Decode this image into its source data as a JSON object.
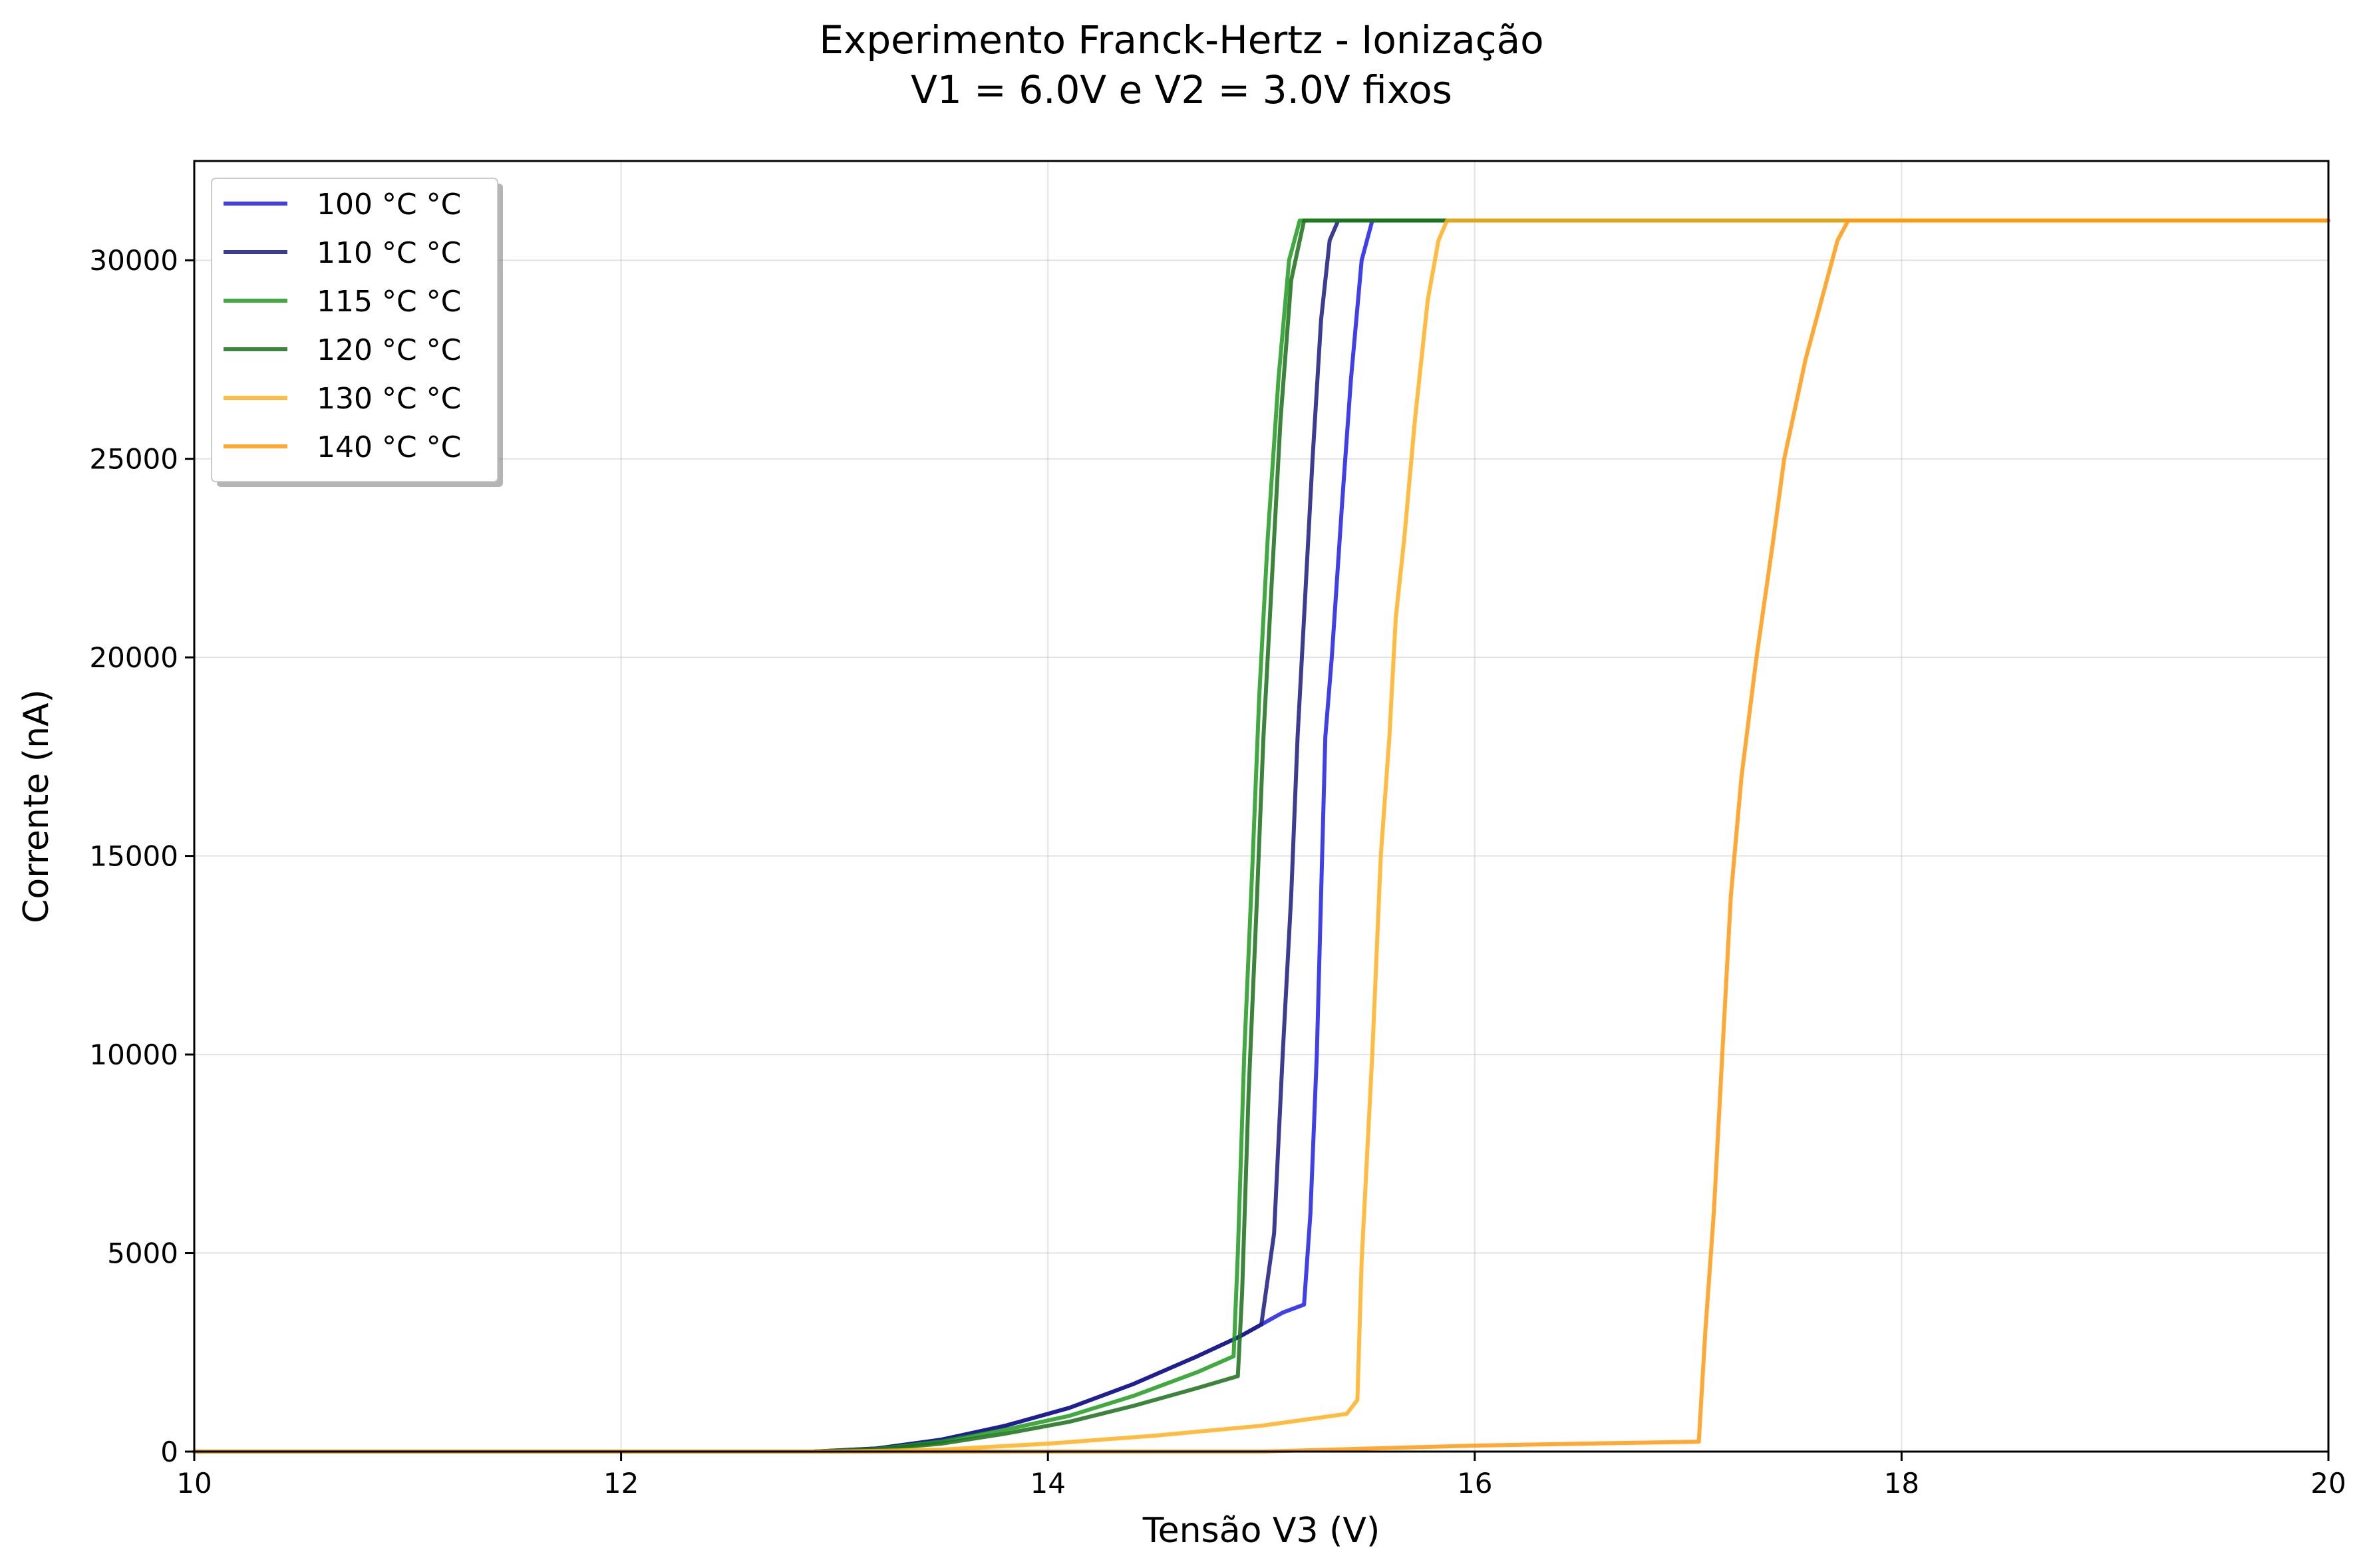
{
  "chart_data": {
    "type": "line",
    "title": "Experimento Franck-Hertz - Ionização",
    "subtitle": "V1 = 6.0V e V2 = 3.0V fixos",
    "xlabel": "Tensão V3 (V)",
    "ylabel": "Corrente (nA)",
    "xlim": [
      10,
      20
    ],
    "ylim": [
      0,
      32500
    ],
    "xticks": [
      10,
      12,
      14,
      16,
      18,
      20
    ],
    "yticks": [
      0,
      5000,
      10000,
      15000,
      20000,
      25000,
      30000
    ],
    "grid": true,
    "legend_position": "top-left",
    "series": [
      {
        "name": "100 °C °C",
        "color": "#1f1fe8",
        "points": [
          [
            10,
            0
          ],
          [
            12.9,
            0
          ],
          [
            13.2,
            80
          ],
          [
            13.5,
            300
          ],
          [
            13.8,
            650
          ],
          [
            14.1,
            1100
          ],
          [
            14.4,
            1700
          ],
          [
            14.7,
            2400
          ],
          [
            14.9,
            2900
          ],
          [
            15.1,
            3500
          ],
          [
            15.2,
            3700
          ],
          [
            15.23,
            6000
          ],
          [
            15.26,
            10000
          ],
          [
            15.28,
            14000
          ],
          [
            15.3,
            18000
          ],
          [
            15.33,
            20000
          ],
          [
            15.38,
            24000
          ],
          [
            15.42,
            27000
          ],
          [
            15.47,
            30000
          ],
          [
            15.52,
            31000
          ],
          [
            20,
            31000
          ]
        ]
      },
      {
        "name": "110 °C °C",
        "color": "#1a1a80",
        "points": [
          [
            10,
            0
          ],
          [
            12.9,
            0
          ],
          [
            13.2,
            80
          ],
          [
            13.5,
            300
          ],
          [
            13.8,
            650
          ],
          [
            14.1,
            1100
          ],
          [
            14.4,
            1700
          ],
          [
            14.7,
            2400
          ],
          [
            14.9,
            2900
          ],
          [
            15.0,
            3200
          ],
          [
            15.06,
            5500
          ],
          [
            15.1,
            10000
          ],
          [
            15.14,
            14000
          ],
          [
            15.17,
            18000
          ],
          [
            15.2,
            21000
          ],
          [
            15.24,
            25000
          ],
          [
            15.28,
            28500
          ],
          [
            15.32,
            30500
          ],
          [
            15.36,
            31000
          ],
          [
            20,
            31000
          ]
        ]
      },
      {
        "name": "115 °C °C",
        "color": "#1f9a1f",
        "points": [
          [
            10,
            0
          ],
          [
            12.9,
            0
          ],
          [
            13.2,
            60
          ],
          [
            13.5,
            250
          ],
          [
            13.8,
            550
          ],
          [
            14.1,
            900
          ],
          [
            14.4,
            1400
          ],
          [
            14.7,
            2000
          ],
          [
            14.87,
            2400
          ],
          [
            14.89,
            5000
          ],
          [
            14.92,
            10000
          ],
          [
            14.96,
            15000
          ],
          [
            14.99,
            19000
          ],
          [
            15.03,
            23000
          ],
          [
            15.08,
            27000
          ],
          [
            15.13,
            30000
          ],
          [
            15.18,
            31000
          ],
          [
            20,
            31000
          ]
        ]
      },
      {
        "name": "120 °C °C",
        "color": "#1a6e1a",
        "points": [
          [
            10,
            0
          ],
          [
            12.9,
            0
          ],
          [
            13.2,
            50
          ],
          [
            13.5,
            200
          ],
          [
            13.8,
            450
          ],
          [
            14.1,
            750
          ],
          [
            14.4,
            1150
          ],
          [
            14.7,
            1600
          ],
          [
            14.89,
            1900
          ],
          [
            14.91,
            4000
          ],
          [
            14.94,
            9000
          ],
          [
            14.98,
            14000
          ],
          [
            15.01,
            18000
          ],
          [
            15.05,
            22000
          ],
          [
            15.09,
            26000
          ],
          [
            15.14,
            29500
          ],
          [
            15.2,
            31000
          ],
          [
            20,
            31000
          ]
        ]
      },
      {
        "name": "130 °C °C",
        "color": "#ffb020",
        "points": [
          [
            10,
            0
          ],
          [
            13.0,
            0
          ],
          [
            13.5,
            50
          ],
          [
            14.0,
            200
          ],
          [
            14.5,
            400
          ],
          [
            15.0,
            650
          ],
          [
            15.4,
            950
          ],
          [
            15.45,
            1300
          ],
          [
            15.47,
            4800
          ],
          [
            15.52,
            10000
          ],
          [
            15.56,
            15000
          ],
          [
            15.6,
            18000
          ],
          [
            15.63,
            21000
          ],
          [
            15.67,
            23000
          ],
          [
            15.72,
            26000
          ],
          [
            15.78,
            29000
          ],
          [
            15.83,
            30500
          ],
          [
            15.87,
            31000
          ],
          [
            20,
            31000
          ]
        ]
      },
      {
        "name": "140 °C °C",
        "color": "#ff9a10",
        "points": [
          [
            10,
            0
          ],
          [
            15.0,
            0
          ],
          [
            16.0,
            150
          ],
          [
            16.5,
            200
          ],
          [
            17.05,
            250
          ],
          [
            17.08,
            3000
          ],
          [
            17.12,
            6000
          ],
          [
            17.16,
            10000
          ],
          [
            17.2,
            14000
          ],
          [
            17.25,
            17000
          ],
          [
            17.32,
            20000
          ],
          [
            17.4,
            23000
          ],
          [
            17.45,
            25000
          ],
          [
            17.55,
            27500
          ],
          [
            17.65,
            29500
          ],
          [
            17.7,
            30500
          ],
          [
            17.75,
            31000
          ],
          [
            20,
            31000
          ]
        ]
      }
    ]
  }
}
